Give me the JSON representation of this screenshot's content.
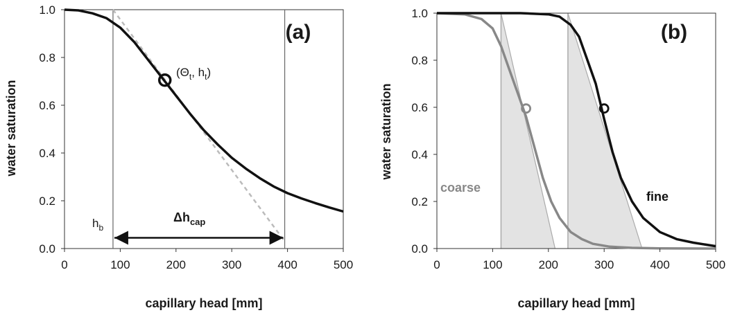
{
  "chart_data": [
    {
      "panel": "(a)",
      "type": "line",
      "xlabel": "capillary head [mm]",
      "ylabel": "water saturation",
      "xlim": [
        0,
        500
      ],
      "ylim": [
        0,
        1.0
      ],
      "xticks": [
        0,
        100,
        200,
        300,
        400,
        500
      ],
      "yticks": [
        0.0,
        0.2,
        0.4,
        0.6,
        0.8,
        1.0
      ],
      "grid": false,
      "series": [
        {
          "color": "#111111",
          "x": [
            0,
            25,
            50,
            75,
            100,
            125,
            150,
            175,
            200,
            225,
            250,
            275,
            300,
            325,
            350,
            375,
            400,
            425,
            450,
            475,
            500
          ],
          "y": [
            1.0,
            0.997,
            0.985,
            0.965,
            0.925,
            0.865,
            0.79,
            0.715,
            0.64,
            0.565,
            0.495,
            0.435,
            0.38,
            0.335,
            0.295,
            0.26,
            0.232,
            0.21,
            0.19,
            0.172,
            0.155
          ]
        }
      ],
      "tangent": {
        "x": [
          87,
          395
        ],
        "y": [
          1.0,
          0.03
        ],
        "style": "dashed",
        "color": "#bbbbbb"
      },
      "inflection_point": {
        "x": 180,
        "y": 0.705
      },
      "vlines": [
        {
          "x": 87
        },
        {
          "x": 395
        }
      ],
      "arrow": {
        "x1": 87,
        "x2": 395,
        "y": 0.045
      },
      "annotations": {
        "point_main": "(Θ",
        "point_sub1": "t",
        "point_mid": ", h",
        "point_sub2": "t",
        "point_close": ")",
        "hb_main": "h",
        "hb_sub": "b",
        "dh_main": "Δh",
        "dh_sub": "cap"
      }
    },
    {
      "panel": "(b)",
      "type": "line",
      "xlabel": "capillary head [mm]",
      "ylabel": "water saturation",
      "xlim": [
        0,
        500
      ],
      "ylim": [
        0,
        1.0
      ],
      "xticks": [
        0,
        100,
        200,
        300,
        400,
        500
      ],
      "yticks": [
        0.0,
        0.2,
        0.4,
        0.6,
        0.8,
        1.0
      ],
      "grid": false,
      "series": [
        {
          "name": "coarse",
          "color": "#888888",
          "x": [
            0,
            50,
            80,
            100,
            115,
            130,
            145,
            160,
            175,
            190,
            205,
            220,
            240,
            260,
            280,
            310,
            350,
            400,
            500
          ],
          "y": [
            1.0,
            0.995,
            0.975,
            0.935,
            0.86,
            0.76,
            0.66,
            0.56,
            0.43,
            0.3,
            0.2,
            0.13,
            0.07,
            0.04,
            0.02,
            0.008,
            0.003,
            0.001,
            0.0
          ]
        },
        {
          "name": "fine",
          "color": "#111111",
          "x": [
            0,
            150,
            200,
            220,
            240,
            255,
            270,
            285,
            300,
            315,
            330,
            350,
            370,
            400,
            430,
            460,
            500
          ],
          "y": [
            1.0,
            1.0,
            0.995,
            0.985,
            0.95,
            0.9,
            0.8,
            0.7,
            0.55,
            0.41,
            0.3,
            0.2,
            0.13,
            0.07,
            0.04,
            0.025,
            0.01
          ]
        }
      ],
      "inflection_points": [
        {
          "x": 160,
          "y": 0.595,
          "color": "#888888"
        },
        {
          "x": 300,
          "y": 0.595,
          "color": "#111111"
        }
      ],
      "shaded_regions": [
        {
          "vline_x": 115,
          "tangent": {
            "x": [
              115,
              212
            ],
            "y": [
              1.0,
              0.0
            ]
          },
          "fill": "#e3e3e3"
        },
        {
          "vline_x": 235,
          "tangent": {
            "x": [
              235,
              368
            ],
            "y": [
              1.0,
              0.0
            ]
          },
          "fill": "#e3e3e3"
        }
      ],
      "series_labels": {
        "coarse": "coarse",
        "fine": "fine"
      }
    }
  ]
}
